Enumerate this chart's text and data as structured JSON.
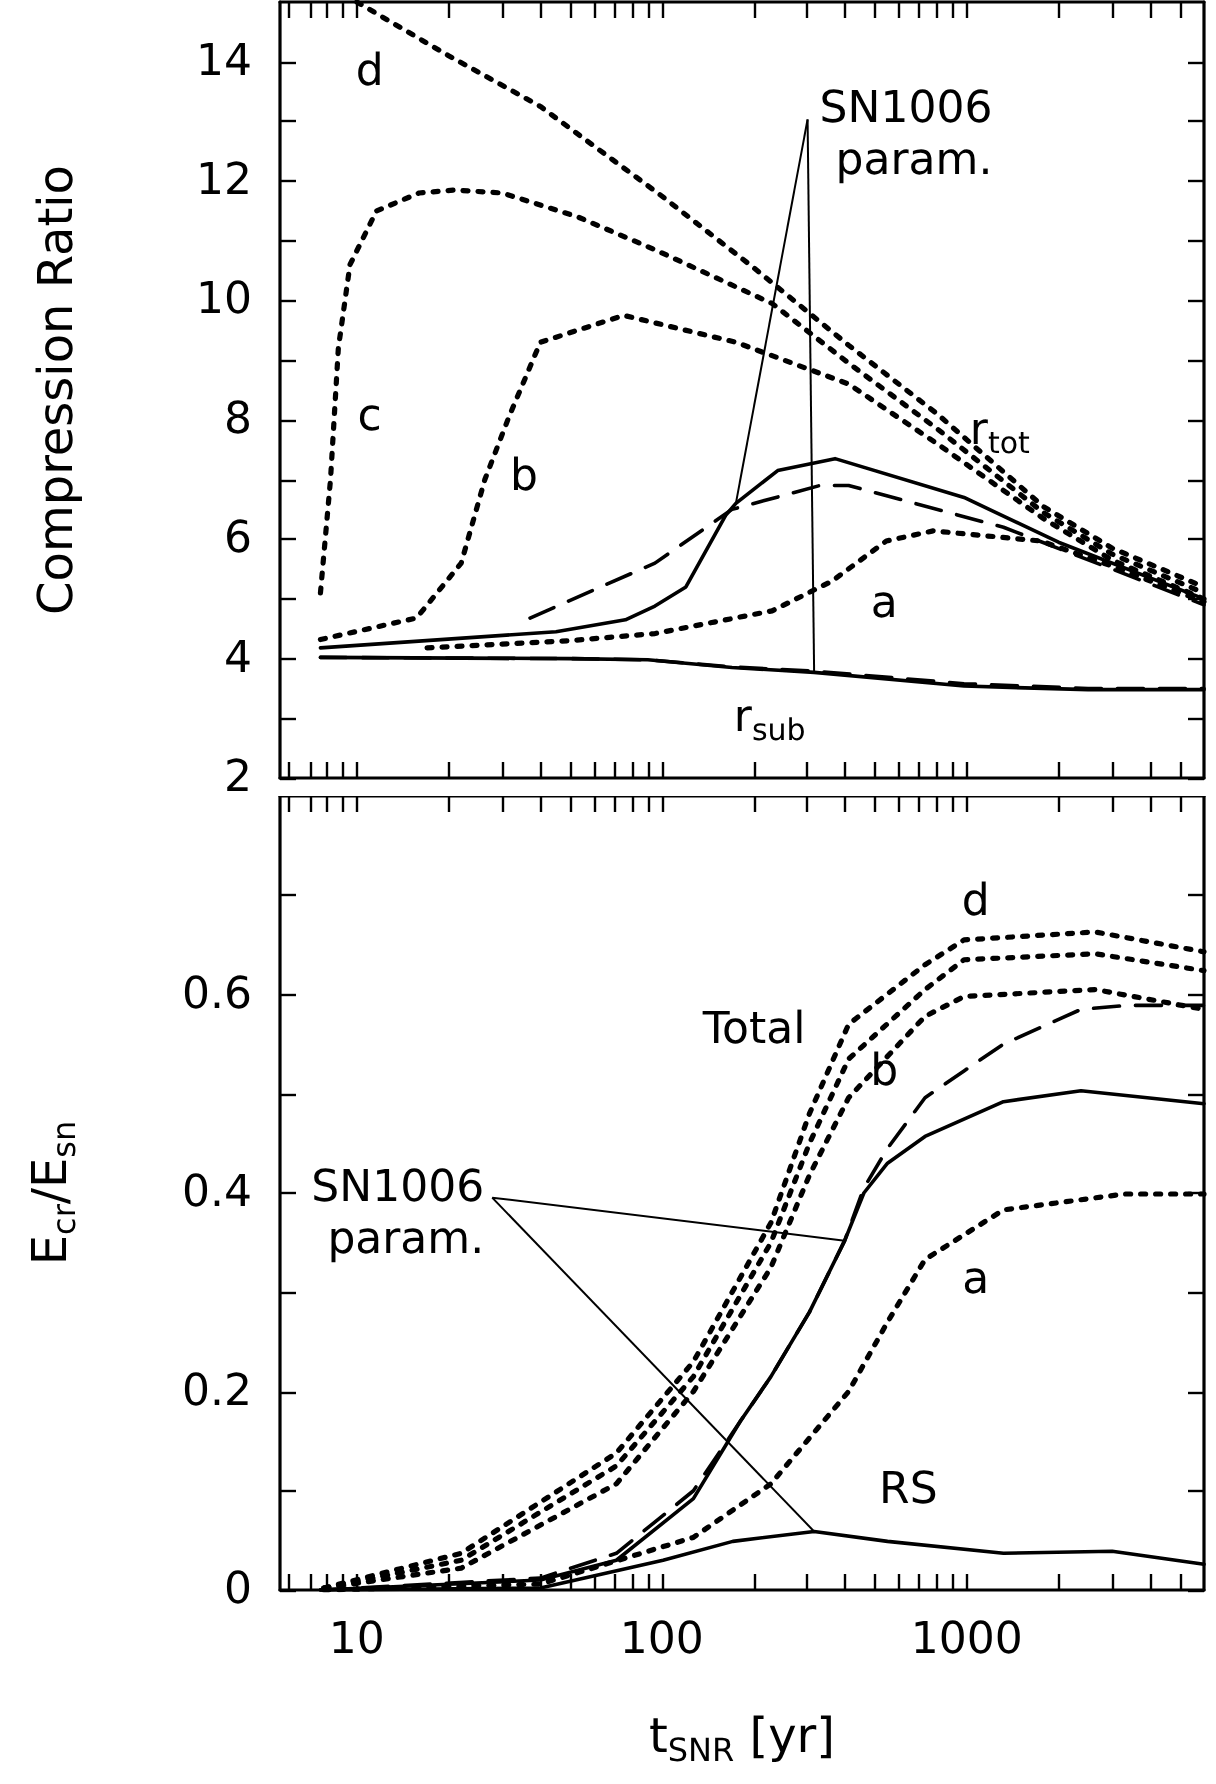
{
  "chart_data": [
    {
      "type": "line",
      "ylabel": "Compression Ratio",
      "xlim": [
        5.6,
        6000
      ],
      "ylim": [
        2,
        15
      ],
      "log": "x",
      "grid": false,
      "marker": "none",
      "tick_labels": "y",
      "xticks": [
        {
          "value": 6,
          "label": null
        },
        {
          "value": 7,
          "label": null
        },
        {
          "value": 8,
          "label": null
        },
        {
          "value": 9,
          "label": null
        },
        10,
        {
          "value": 20,
          "label": null
        },
        {
          "value": 30,
          "label": null
        },
        {
          "value": 40,
          "label": null
        },
        {
          "value": 50,
          "label": null
        },
        {
          "value": 60,
          "label": null
        },
        {
          "value": 70,
          "label": null
        },
        {
          "value": 80,
          "label": null
        },
        {
          "value": 90,
          "label": null
        },
        100,
        {
          "value": 200,
          "label": null
        },
        {
          "value": 300,
          "label": null
        },
        {
          "value": 400,
          "label": null
        },
        {
          "value": 500,
          "label": null
        },
        {
          "value": 600,
          "label": null
        },
        {
          "value": 700,
          "label": null
        },
        {
          "value": 800,
          "label": null
        },
        {
          "value": 900,
          "label": null
        },
        1000,
        {
          "value": 2000,
          "label": null
        },
        {
          "value": 3000,
          "label": null
        },
        {
          "value": 4000,
          "label": null
        },
        {
          "value": 5000,
          "label": null
        }
      ],
      "yticks": [
        2,
        {
          "value": 3,
          "label": null
        },
        4,
        {
          "value": 5,
          "label": null
        },
        6,
        {
          "value": 7,
          "label": null
        },
        8,
        {
          "value": 9,
          "label": null
        },
        10,
        {
          "value": 11,
          "label": null
        },
        12,
        {
          "value": 13,
          "label": null
        },
        14
      ],
      "series": [
        {
          "color": "#000000",
          "line_style": "dotted",
          "x": [
            10,
            20,
            40,
            100,
            200,
            410,
            800,
            1780,
            3000,
            6000
          ],
          "values": [
            15,
            14.1,
            13.25,
            11.75,
            10.55,
            9.25,
            8.1,
            6.55,
            5.85,
            5.2
          ]
        },
        {
          "color": "#000000",
          "line_style": "dotted",
          "x": [
            7.6,
            8.2,
            8.7,
            9.5,
            11.6,
            16,
            21,
            30,
            53,
            95,
            230,
            410,
            800,
            1780,
            3000,
            6000
          ],
          "values": [
            5.1,
            7.0,
            9.2,
            10.6,
            11.5,
            11.8,
            11.85,
            11.8,
            11.4,
            10.85,
            9.95,
            8.95,
            7.85,
            6.45,
            5.75,
            5.1
          ]
        },
        {
          "color": "#000000",
          "line_style": "dotted",
          "x": [
            7.6,
            15.7,
            22,
            26.3,
            31.6,
            40,
            75,
            175,
            410,
            800,
            1780,
            3000,
            6000
          ],
          "values": [
            4.32,
            4.68,
            5.6,
            7.0,
            8.06,
            9.3,
            9.75,
            9.3,
            8.6,
            7.6,
            6.35,
            5.65,
            5.0
          ]
        },
        {
          "color": "#000000",
          "line_style": "dotted",
          "x": [
            17,
            50,
            95,
            230,
            362,
            545,
            776,
            1750,
            3000,
            6000
          ],
          "values": [
            4.18,
            4.3,
            4.42,
            4.8,
            5.3,
            5.97,
            6.14,
            5.97,
            5.55,
            4.95
          ]
        },
        {
          "color": "#000000",
          "line_style": "solid",
          "x": [
            7.6,
            45,
            76,
            95,
            120,
            162,
            175,
            240,
            370,
            980,
            2000,
            6000
          ],
          "values": [
            4.18,
            4.45,
            4.65,
            4.88,
            5.2,
            6.4,
            6.6,
            7.15,
            7.35,
            6.7,
            5.95,
            5.0
          ]
        },
        {
          "color": "#000000",
          "line_style": "dashed",
          "x": [
            37,
            95,
            170,
            330,
            410,
            1320,
            3000,
            6000
          ],
          "values": [
            4.68,
            5.6,
            6.5,
            6.9,
            6.9,
            6.2,
            5.5,
            4.9
          ]
        },
        {
          "color": "#000000",
          "line_style": "solid",
          "x": [
            7.6,
            50,
            90,
            170,
            316,
            980,
            2500,
            6000
          ],
          "values": [
            4.02,
            4.0,
            3.98,
            3.85,
            3.77,
            3.54,
            3.48,
            3.48
          ]
        },
        {
          "color": "#000000",
          "line_style": "dashed",
          "x": [
            7.6,
            50,
            90,
            170,
            316,
            980,
            2500,
            6000
          ],
          "values": [
            4.02,
            4.0,
            3.98,
            3.86,
            3.79,
            3.58,
            3.5,
            3.5
          ]
        }
      ],
      "annotations": [
        "d",
        "c",
        "b",
        "a",
        "r$_{tot}$",
        "r$_{sub}$",
        {
          "text": "SN1006 param.",
          "x": 175,
          "y": 6.6
        }
      ]
    },
    {
      "type": "line",
      "xlabel": "t$_{SNR}$ [yr]",
      "ylabel": "E$_{cr}$/E$_{sn}$",
      "xlim": [
        5.6,
        6000
      ],
      "ylim": [
        0,
        0.8
      ],
      "log": "x",
      "grid": false,
      "marker": "none",
      "xticks": [
        {
          "value": 6,
          "label": null
        },
        {
          "value": 7,
          "label": null
        },
        {
          "value": 8,
          "label": null
        },
        {
          "value": 9,
          "label": null
        },
        10,
        {
          "value": 20,
          "label": null
        },
        {
          "value": 30,
          "label": null
        },
        {
          "value": 40,
          "label": null
        },
        {
          "value": 50,
          "label": null
        },
        {
          "value": 60,
          "label": null
        },
        {
          "value": 70,
          "label": null
        },
        {
          "value": 80,
          "label": null
        },
        {
          "value": 90,
          "label": null
        },
        100,
        {
          "value": 200,
          "label": null
        },
        {
          "value": 300,
          "label": null
        },
        {
          "value": 400,
          "label": null
        },
        {
          "value": 500,
          "label": null
        },
        {
          "value": 600,
          "label": null
        },
        {
          "value": 700,
          "label": null
        },
        {
          "value": 800,
          "label": null
        },
        {
          "value": 900,
          "label": null
        },
        1000,
        {
          "value": 2000,
          "label": null
        },
        {
          "value": 3000,
          "label": null
        },
        {
          "value": 4000,
          "label": null
        },
        {
          "value": 5000,
          "label": null
        }
      ],
      "yticks": [
        0,
        {
          "value": 0.1,
          "label": null
        },
        0.2,
        {
          "value": 0.3,
          "label": null
        },
        0.4,
        {
          "value": 0.5,
          "label": null
        },
        0.6,
        {
          "value": 0.7,
          "label": null
        }
      ],
      "series": [
        {
          "color": "#000000",
          "line_style": "dotted",
          "x": [
            7.8,
            22,
            71,
            127,
            228,
            305,
            410,
            730,
            980,
            2640,
            6000
          ],
          "values": [
            0.002,
            0.037,
            0.138,
            0.23,
            0.37,
            0.48,
            0.57,
            0.63,
            0.655,
            0.663,
            0.643
          ]
        },
        {
          "color": "#000000",
          "line_style": "dotted",
          "x": [
            7.8,
            22,
            71,
            127,
            228,
            305,
            410,
            730,
            980,
            2640,
            6000
          ],
          "values": [
            0.002,
            0.03,
            0.125,
            0.215,
            0.35,
            0.45,
            0.535,
            0.605,
            0.635,
            0.641,
            0.624
          ]
        },
        {
          "color": "#000000",
          "line_style": "dotted",
          "x": [
            7.8,
            22,
            71,
            127,
            228,
            305,
            410,
            730,
            980,
            2640,
            6000
          ],
          "values": [
            0.002,
            0.022,
            0.107,
            0.2,
            0.325,
            0.418,
            0.496,
            0.578,
            0.598,
            0.605,
            0.585
          ]
        },
        {
          "color": "#000000",
          "line_style": "dotted",
          "x": [
            7.8,
            40,
            127,
            228,
            410,
            550,
            730,
            1320,
            3300,
            6000
          ],
          "values": [
            0,
            0.006,
            0.053,
            0.107,
            0.2,
            0.27,
            0.333,
            0.383,
            0.399,
            0.399
          ]
        },
        {
          "color": "#000000",
          "line_style": "solid",
          "x": [
            7.6,
            40,
            71,
            127,
            181,
            228,
            305,
            398,
            460,
            550,
            730,
            1320,
            2370,
            6000
          ],
          "values": [
            0,
            0.01,
            0.03,
            0.092,
            0.17,
            0.215,
            0.28,
            0.352,
            0.4,
            0.43,
            0.457,
            0.492,
            0.503,
            0.49
          ]
        },
        {
          "color": "#000000",
          "line_style": "dashed",
          "x": [
            7.6,
            40,
            71,
            127,
            181,
            228,
            305,
            398,
            460,
            550,
            730,
            980,
            1320,
            2370,
            3350,
            6000
          ],
          "values": [
            0,
            0.012,
            0.037,
            0.1,
            0.17,
            0.215,
            0.28,
            0.352,
            0.405,
            0.445,
            0.496,
            0.523,
            0.55,
            0.585,
            0.589,
            0.589
          ]
        },
        {
          "color": "#000000",
          "line_style": "solid",
          "x": [
            7.6,
            40,
            101,
            171,
            316,
            550,
            1320,
            3000,
            6000
          ],
          "values": [
            0,
            0.002,
            0.03,
            0.049,
            0.059,
            0.049,
            0.037,
            0.039,
            0.026
          ]
        }
      ],
      "annotations": [
        "d",
        "Total",
        "b",
        "a",
        "RS",
        {
          "text": "SN1006 param.",
          "x": 398,
          "y": 0.352
        }
      ]
    }
  ]
}
